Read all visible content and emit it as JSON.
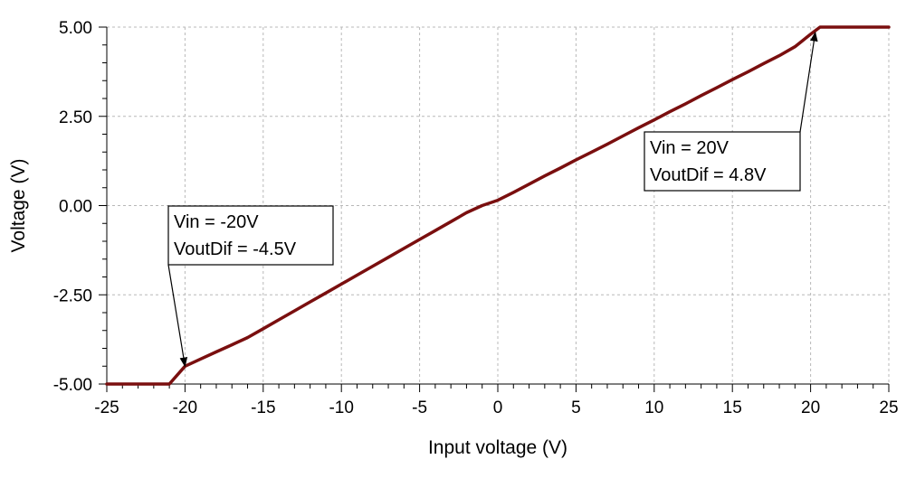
{
  "chart_data": {
    "type": "line",
    "title": "",
    "xlabel": "Input voltage (V)",
    "ylabel": "Voltage (V)",
    "xlim": [
      -25,
      25
    ],
    "ylim": [
      -5,
      5
    ],
    "x_ticks": [
      -25,
      -20,
      -15,
      -10,
      -5,
      0,
      5,
      10,
      15,
      20,
      25
    ],
    "x_tick_labels": [
      "-25",
      "-20",
      "-15",
      "-10",
      "-5",
      "0",
      "5",
      "10",
      "15",
      "20",
      "25"
    ],
    "y_ticks": [
      -5,
      -2.5,
      0,
      2.5,
      5
    ],
    "y_tick_labels": [
      "-5.00",
      "-2.50",
      "0.00",
      "2.50",
      "5.00"
    ],
    "grid": true,
    "series": [
      {
        "color": "#7a0f0f",
        "x": [
          -25,
          -21,
          -20,
          -19,
          -18,
          -17,
          -16,
          -15,
          -14,
          -13,
          -12,
          -11,
          -10,
          -9,
          -8,
          -7,
          -6,
          -5,
          -4,
          -3,
          -2,
          -1,
          0,
          1,
          2,
          3,
          4,
          5,
          6,
          7,
          8,
          9,
          10,
          11,
          12,
          13,
          14,
          15,
          16,
          17,
          18,
          19,
          20,
          20.6,
          21,
          25
        ],
        "y": [
          -5.0,
          -5.0,
          -4.5,
          -4.3,
          -4.1,
          -3.9,
          -3.7,
          -3.45,
          -3.2,
          -2.95,
          -2.7,
          -2.45,
          -2.2,
          -1.95,
          -1.7,
          -1.45,
          -1.2,
          -0.95,
          -0.7,
          -0.45,
          -0.2,
          0.0,
          0.15,
          0.37,
          0.6,
          0.83,
          1.05,
          1.28,
          1.5,
          1.72,
          1.95,
          2.18,
          2.4,
          2.63,
          2.85,
          3.08,
          3.3,
          3.53,
          3.75,
          3.98,
          4.2,
          4.45,
          4.8,
          5.0,
          5.0,
          5.0
        ]
      }
    ],
    "annotations": [
      {
        "lines": [
          "Vin = -20V",
          "VoutDif = -4.5V"
        ],
        "target_x": -20,
        "target_y": -4.5
      },
      {
        "lines": [
          "Vin = 20V",
          "VoutDif = 4.8V"
        ],
        "target_x": 20.3,
        "target_y": 4.85
      }
    ]
  }
}
